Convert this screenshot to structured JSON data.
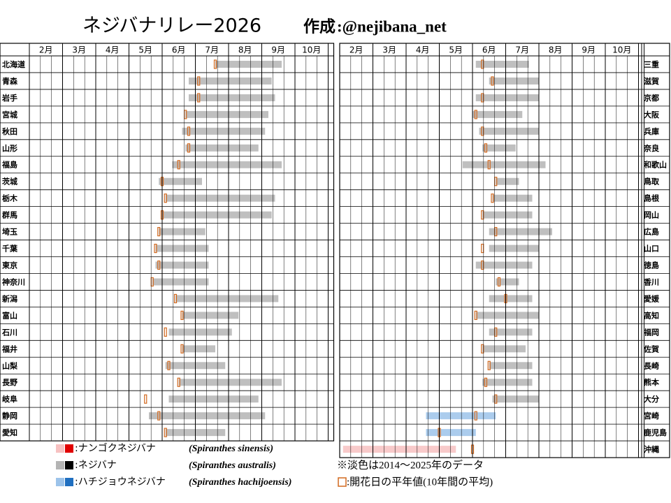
{
  "header": {
    "title": "ネジバナリレー2026",
    "author_label": "作成",
    "author": ":@nejibana_net"
  },
  "months": [
    "2月",
    "3月",
    "4月",
    "5月",
    "6月",
    "7月",
    "8月",
    "9月",
    "10月"
  ],
  "left_rows": [
    {
      "name": "北海道",
      "avg": 7.6,
      "range": [
        7.6,
        9.6
      ],
      "kind": 1
    },
    {
      "name": "青森",
      "avg": 7.1,
      "range": [
        6.8,
        9.3
      ],
      "kind": 1
    },
    {
      "name": "岩手",
      "avg": 7.1,
      "range": [
        6.8,
        9.4
      ],
      "kind": 1
    },
    {
      "name": "宮城",
      "avg": 6.7,
      "range": [
        6.7,
        9.2
      ],
      "kind": 1
    },
    {
      "name": "秋田",
      "avg": 6.8,
      "range": [
        6.6,
        9.1
      ],
      "kind": 1
    },
    {
      "name": "山形",
      "avg": 6.8,
      "range": [
        6.7,
        8.9
      ],
      "kind": 1
    },
    {
      "name": "福島",
      "avg": 6.5,
      "range": [
        6.3,
        9.6
      ],
      "kind": 1
    },
    {
      "name": "茨城",
      "avg": 6.0,
      "range": [
        5.9,
        7.2
      ],
      "kind": 1
    },
    {
      "name": "栃木",
      "avg": 6.1,
      "range": [
        6.1,
        9.4
      ],
      "kind": 1
    },
    {
      "name": "群馬",
      "avg": 6.0,
      "range": [
        6.0,
        9.3
      ],
      "kind": 1
    },
    {
      "name": "埼玉",
      "avg": 5.9,
      "range": [
        5.9,
        7.3
      ],
      "kind": 1
    },
    {
      "name": "千葉",
      "avg": 5.8,
      "range": [
        5.8,
        7.4
      ],
      "kind": 1
    },
    {
      "name": "東京",
      "avg": 5.9,
      "range": [
        5.8,
        7.4
      ],
      "kind": 1
    },
    {
      "name": "神奈川",
      "avg": 5.7,
      "range": [
        5.7,
        7.4
      ],
      "kind": 1
    },
    {
      "name": "新潟",
      "avg": 6.4,
      "range": [
        6.4,
        9.5
      ],
      "kind": 1
    },
    {
      "name": "富山",
      "avg": 6.6,
      "range": [
        6.6,
        8.3
      ],
      "kind": 1
    },
    {
      "name": "石川",
      "avg": 6.1,
      "range": [
        6.2,
        8.1
      ],
      "kind": 1
    },
    {
      "name": "福井",
      "avg": 6.6,
      "range": [
        6.6,
        7.6
      ],
      "kind": 1
    },
    {
      "name": "山梨",
      "avg": 6.2,
      "range": [
        6.1,
        7.9
      ],
      "kind": 1
    },
    {
      "name": "長野",
      "avg": 6.5,
      "range": [
        6.5,
        9.6
      ],
      "kind": 1
    },
    {
      "name": "岐阜",
      "avg": 5.5,
      "range": [
        6.2,
        8.9
      ],
      "kind": 1
    },
    {
      "name": "静岡",
      "avg": 5.9,
      "range": [
        5.6,
        9.1
      ],
      "kind": 1
    },
    {
      "name": "愛知",
      "avg": 6.1,
      "range": [
        6.1,
        7.9
      ],
      "kind": 1
    }
  ],
  "right_rows": [
    {
      "name": "三重",
      "avg": 6.3,
      "range": [
        6.1,
        7.7
      ],
      "kind": 1
    },
    {
      "name": "滋賀",
      "avg": 6.6,
      "range": [
        6.5,
        8.0
      ],
      "kind": 1
    },
    {
      "name": "京都",
      "avg": 6.3,
      "range": [
        6.1,
        8.0
      ],
      "kind": 1
    },
    {
      "name": "大阪",
      "avg": 6.1,
      "range": [
        6.0,
        7.5
      ],
      "kind": 1
    },
    {
      "name": "兵庫",
      "avg": 6.3,
      "range": [
        6.2,
        8.0
      ],
      "kind": 1
    },
    {
      "name": "奈良",
      "avg": 6.4,
      "range": [
        6.3,
        7.3
      ],
      "kind": 1
    },
    {
      "name": "和歌山",
      "avg": 6.5,
      "range": [
        5.7,
        8.2
      ],
      "kind": 1
    },
    {
      "name": "鳥取",
      "avg": 6.7,
      "range": [
        6.7,
        7.4
      ],
      "kind": 1
    },
    {
      "name": "島根",
      "avg": 6.6,
      "range": [
        6.6,
        7.8
      ],
      "kind": 1
    },
    {
      "name": "岡山",
      "avg": 6.3,
      "range": [
        6.3,
        7.8
      ],
      "kind": 1
    },
    {
      "name": "広島",
      "avg": 6.7,
      "range": [
        6.5,
        8.4
      ],
      "kind": 1
    },
    {
      "name": "山口",
      "avg": 6.3,
      "range": [
        6.5,
        8.0
      ],
      "kind": 1
    },
    {
      "name": "徳島",
      "avg": 6.3,
      "range": [
        6.1,
        7.8
      ],
      "kind": 1
    },
    {
      "name": "香川",
      "avg": 6.8,
      "range": [
        6.7,
        7.4
      ],
      "kind": 1
    },
    {
      "name": "愛媛",
      "avg": 7.0,
      "range": [
        6.5,
        7.8
      ],
      "kind": 1
    },
    {
      "name": "高知",
      "avg": 6.1,
      "range": [
        6.1,
        8.0
      ],
      "kind": 1
    },
    {
      "name": "福岡",
      "avg": 6.7,
      "range": [
        6.5,
        7.8
      ],
      "kind": 1
    },
    {
      "name": "佐賀",
      "avg": 6.3,
      "range": [
        6.3,
        7.6
      ],
      "kind": 1
    },
    {
      "name": "長崎",
      "avg": 6.5,
      "range": [
        6.5,
        7.8
      ],
      "kind": 1
    },
    {
      "name": "熊本",
      "avg": 6.4,
      "range": [
        6.3,
        7.8
      ],
      "kind": 1
    },
    {
      "name": "大分",
      "avg": 6.7,
      "range": [
        6.6,
        8.0
      ],
      "kind": 1
    },
    {
      "name": "宮崎",
      "avg": 6.1,
      "range": [
        4.6,
        6.7
      ],
      "kind": 2
    },
    {
      "name": "鹿児島",
      "avg": 5.0,
      "range": [
        4.6,
        6.1
      ],
      "kind": 2
    },
    {
      "name": "沖縄",
      "avg": 6.0,
      "range": [
        2.1,
        5.5
      ],
      "kind": 0
    }
  ],
  "legend": [
    {
      "label": ":ナンゴクネジバナ",
      "latin": "(Spiranthes sinensis)",
      "colors": [
        "#f7c1c1",
        "#e00000"
      ]
    },
    {
      "label": ":ネジバナ",
      "latin": "(Spiranthes australis)",
      "colors": [
        "#b4b4b4",
        "#000000"
      ]
    },
    {
      "label": ":ハチジョウネジバナ",
      "latin": "(Spiranthes hachijoensis)",
      "colors": [
        "#9cc3ea",
        "#1f6fc0"
      ]
    }
  ],
  "notes": [
    "※淡色は2014～2025年のデータ",
    ":開花日の平年値(10年間の平均)"
  ],
  "avg_color": "#d2691e"
}
